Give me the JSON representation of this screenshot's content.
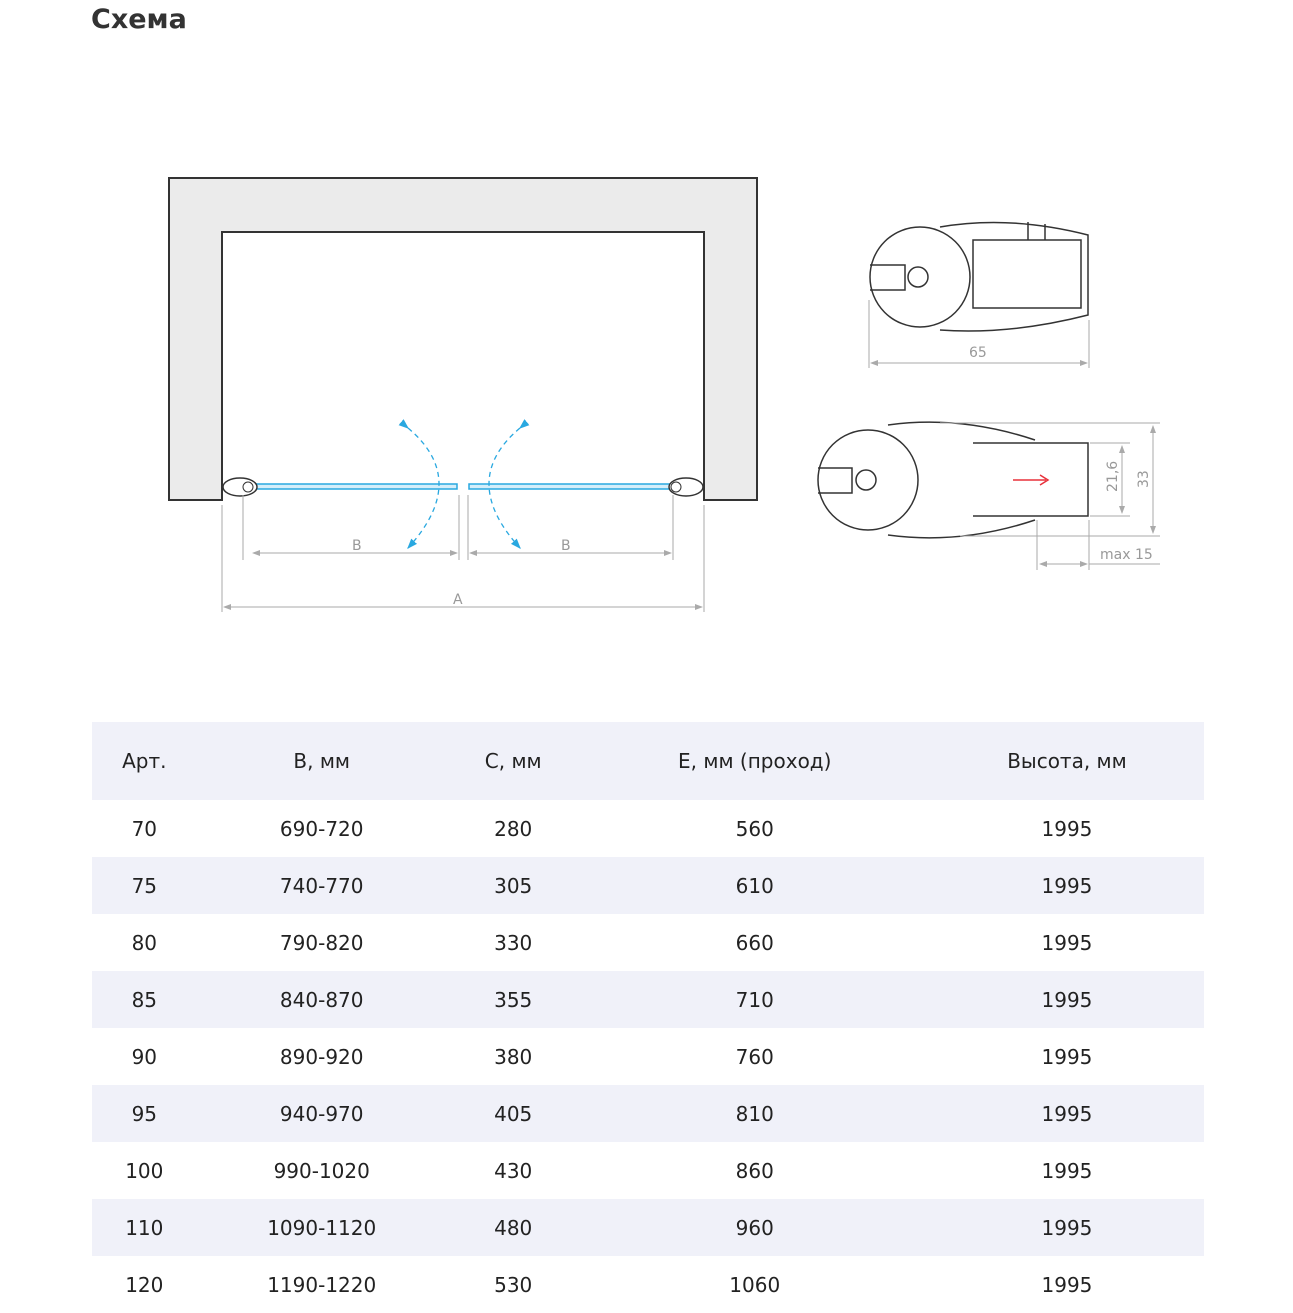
{
  "title": "Схема",
  "diagram": {
    "labels": {
      "b_left": "B",
      "b_right": "B",
      "a": "A",
      "width_65": "65",
      "inner_21_6": "21,6",
      "height_33": "33",
      "max_15": "max 15"
    },
    "colors": {
      "glass": "#29a8e0",
      "wall": "#ebebeb",
      "arrow_red": "#e8303a",
      "dim": "#aaaaaa"
    }
  },
  "table": {
    "headers": [
      "Арт.",
      "B, мм",
      "C, мм",
      "E, мм (проход)",
      "Высота, мм"
    ],
    "rows": [
      [
        "70",
        "690-720",
        "280",
        "560",
        "1995"
      ],
      [
        "75",
        "740-770",
        "305",
        "610",
        "1995"
      ],
      [
        "80",
        "790-820",
        "330",
        "660",
        "1995"
      ],
      [
        "85",
        "840-870",
        "355",
        "710",
        "1995"
      ],
      [
        "90",
        "890-920",
        "380",
        "760",
        "1995"
      ],
      [
        "95",
        "940-970",
        "405",
        "810",
        "1995"
      ],
      [
        "100",
        "990-1020",
        "430",
        "860",
        "1995"
      ],
      [
        "110",
        "1090-1120",
        "480",
        "960",
        "1995"
      ],
      [
        "120",
        "1190-1220",
        "530",
        "1060",
        "1995"
      ]
    ]
  }
}
